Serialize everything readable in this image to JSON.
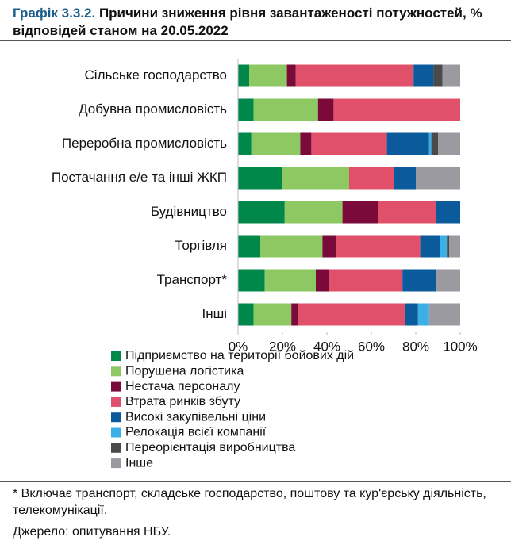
{
  "chart_data": {
    "type": "stacked-bar-horizontal",
    "label": "Графік 3.3.2.",
    "title": "Причини зниження рівня завантаженості потужностей, % відповідей станом на 20.05.2022",
    "categories": [
      "Сільське господарство",
      "Добувна промисловість",
      "Переробна промисловість",
      "Постачання е/е та інші ЖКП",
      "Будівництво",
      "Торгівля",
      "Транспорт*",
      "Інші"
    ],
    "series": [
      {
        "name": "Підприємство на території бойових дій",
        "color": "#00874a",
        "values": [
          5,
          7,
          6,
          20,
          21,
          10,
          12,
          7
        ]
      },
      {
        "name": "Порушена логістика",
        "color": "#8dc863",
        "values": [
          17,
          29,
          22,
          30,
          26,
          28,
          23,
          17
        ]
      },
      {
        "name": "Нестача персоналу",
        "color": "#7a0a3a",
        "values": [
          4,
          7,
          5,
          0,
          16,
          6,
          6,
          3
        ]
      },
      {
        "name": "Втрата ринків збуту",
        "color": "#e0506a",
        "values": [
          53,
          57,
          34,
          20,
          26,
          38,
          33,
          48
        ]
      },
      {
        "name": "Високі закупівельні ціни",
        "color": "#0a5a9c",
        "values": [
          9,
          0,
          19,
          10,
          11,
          9,
          15,
          6
        ]
      },
      {
        "name": "Релокація всієї компанії",
        "color": "#3ab0e6",
        "values": [
          0,
          0,
          1,
          0,
          0,
          3,
          0,
          5
        ]
      },
      {
        "name": "Переорієнтація виробництва",
        "color": "#4a4a4a",
        "values": [
          4,
          0,
          3,
          0,
          0,
          1,
          0,
          0
        ]
      },
      {
        "name": "Інше",
        "color": "#9a9aa0",
        "values": [
          8,
          0,
          10,
          20,
          0,
          5,
          11,
          14
        ]
      }
    ],
    "xlim": [
      0,
      100
    ],
    "xticks": [
      {
        "value": 0,
        "label": "0%"
      },
      {
        "value": 20,
        "label": "20%"
      },
      {
        "value": 40,
        "label": "40%"
      },
      {
        "value": 60,
        "label": "60%"
      },
      {
        "value": 80,
        "label": "80%"
      },
      {
        "value": 100,
        "label": "100%"
      }
    ],
    "grid": false,
    "legend": "bottom",
    "footnote": "* Включає транспорт, складське господарство, поштову та кур'єрську діяльність, телекомунікації.",
    "source": "Джерело: опитування НБУ."
  }
}
